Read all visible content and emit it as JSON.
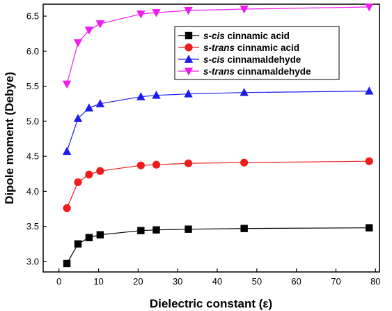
{
  "chart_data": {
    "type": "line",
    "xlabel": "Dielectric constant (ε)",
    "ylabel": "Dipole moment (Debye)",
    "xlim": [
      -4,
      81
    ],
    "ylim": [
      2.85,
      6.67
    ],
    "xticks": [
      0,
      10,
      20,
      30,
      40,
      50,
      60,
      70,
      80
    ],
    "yticks": [
      3.0,
      3.5,
      4.0,
      4.5,
      5.0,
      5.5,
      6.0,
      6.5
    ],
    "x": [
      2.0,
      4.8,
      7.6,
      10.4,
      20.7,
      24.6,
      32.7,
      46.8,
      78.4
    ],
    "grid": false,
    "legend_position": "top-right",
    "series": [
      {
        "name_prefix": "s-cis",
        "name_suffix": " cinnamic acid",
        "marker": "square",
        "color": "#000000",
        "values": [
          2.97,
          3.25,
          3.34,
          3.38,
          3.44,
          3.45,
          3.46,
          3.47,
          3.48
        ]
      },
      {
        "name_prefix": "s-trans",
        "name_suffix": " cinnamic acid",
        "marker": "circle",
        "color": "#ee1c1c",
        "values": [
          3.76,
          4.13,
          4.24,
          4.29,
          4.37,
          4.38,
          4.4,
          4.41,
          4.43
        ]
      },
      {
        "name_prefix": "s-cis",
        "name_suffix": " cinnamaldehyde",
        "marker": "triangle-up",
        "color": "#1c1cee",
        "values": [
          4.57,
          5.04,
          5.19,
          5.25,
          5.35,
          5.37,
          5.39,
          5.41,
          5.43
        ]
      },
      {
        "name_prefix": "s-trans",
        "name_suffix": " cinnamaldehyde",
        "marker": "triangle-down",
        "color": "#ee1cee",
        "values": [
          5.53,
          6.12,
          6.3,
          6.39,
          6.53,
          6.55,
          6.58,
          6.6,
          6.63
        ]
      }
    ]
  }
}
